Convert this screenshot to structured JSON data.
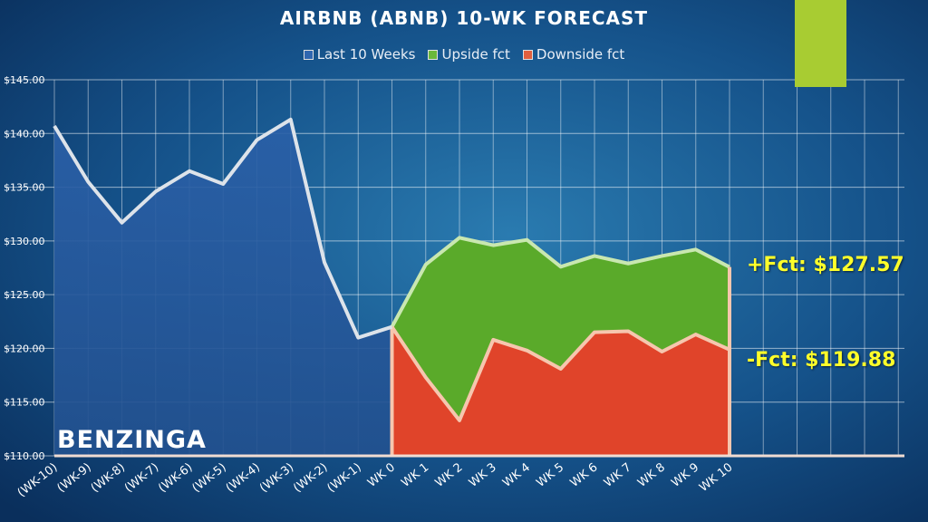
{
  "chart_data": {
    "type": "area",
    "title": "AIRBNB (ABNB) 10-WK FORECAST",
    "categories": [
      "(WK-10)",
      "(WK-9)",
      "(WK-8)",
      "(WK-7)",
      "(WK-6)",
      "(WK-5)",
      "(WK-4)",
      "(WK-3)",
      "(WK-2)",
      "(WK-1)",
      "WK 0",
      "WK 1",
      "WK 2",
      "WK 3",
      "WK 4",
      "WK 5",
      "WK 6",
      "WK 7",
      "WK 8",
      "WK 9",
      "WK 10"
    ],
    "series": [
      {
        "name": "Last 10 Weeks",
        "type": "line",
        "color": "#dde3ea",
        "values": [
          140.7,
          135.5,
          131.7,
          134.6,
          136.5,
          135.3,
          139.4,
          141.3,
          128.0,
          121.0,
          122.0,
          null,
          null,
          null,
          null,
          null,
          null,
          null,
          null,
          null,
          null
        ]
      },
      {
        "name": "Upside fct",
        "type": "area",
        "color": "#5aaa2a",
        "values": [
          null,
          null,
          null,
          null,
          null,
          null,
          null,
          null,
          null,
          null,
          122.0,
          127.8,
          130.3,
          129.6,
          130.1,
          127.6,
          128.6,
          127.9,
          128.6,
          129.2,
          127.57
        ]
      },
      {
        "name": "Downside fct",
        "type": "area",
        "color": "#e0442a",
        "values": [
          null,
          null,
          null,
          null,
          null,
          null,
          null,
          null,
          null,
          null,
          122.0,
          117.3,
          113.3,
          120.8,
          119.8,
          118.1,
          121.5,
          121.6,
          119.7,
          121.3,
          119.88
        ]
      }
    ],
    "y_ticks": [
      "$110.00",
      "$115.00",
      "$120.00",
      "$125.00",
      "$130.00",
      "$135.00",
      "$140.00",
      "$145.00"
    ],
    "ylim": [
      110,
      145
    ],
    "grid": true,
    "legend_position": "top-center",
    "xlabel": "",
    "ylabel": ""
  },
  "annotations": {
    "upside": "+Fct: $127.57",
    "downside": "-Fct: $119.88"
  },
  "brand": "BENZINGA",
  "colors": {
    "accent": "#a8cc32",
    "background": "#0d3f72",
    "history_fill": "#245a9e",
    "upside": "#5aaa2a",
    "downside": "#e0442a",
    "annotation": "#ffff2a"
  }
}
